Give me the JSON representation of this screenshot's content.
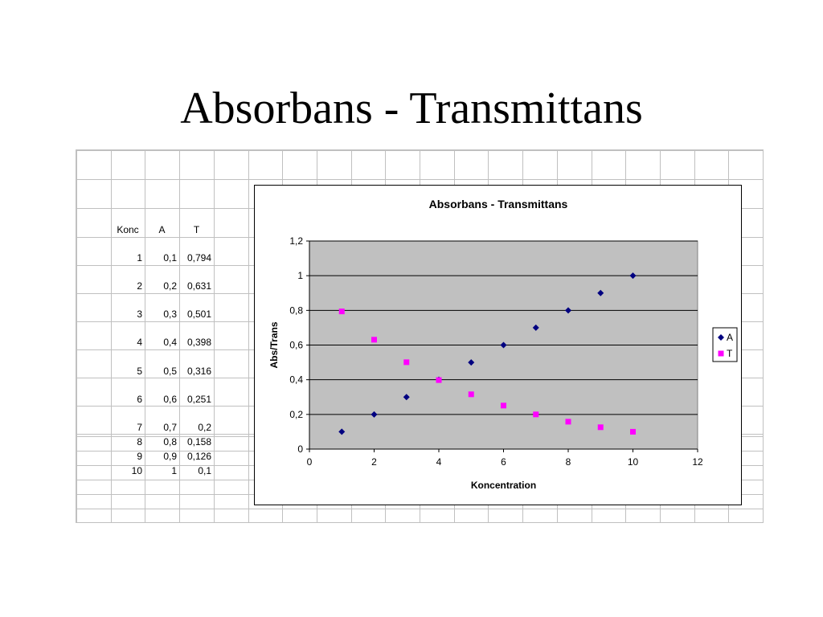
{
  "slide": {
    "title": "Absorbans - Transmittans"
  },
  "table": {
    "headers": [
      "Konc",
      "A",
      "T"
    ],
    "rows": [
      [
        "1",
        "0,1",
        "0,794"
      ],
      [
        "2",
        "0,2",
        "0,631"
      ],
      [
        "3",
        "0,3",
        "0,501"
      ],
      [
        "4",
        "0,4",
        "0,398"
      ],
      [
        "5",
        "0,5",
        "0,316"
      ],
      [
        "6",
        "0,6",
        "0,251"
      ],
      [
        "7",
        "0,7",
        "0,2"
      ],
      [
        "8",
        "0,8",
        "0,158"
      ],
      [
        "9",
        "0,9",
        "0,126"
      ],
      [
        "10",
        "1",
        "0,1"
      ]
    ]
  },
  "chart_data": {
    "type": "scatter",
    "title": "Absorbans - Transmittans",
    "xlabel": "Koncentration",
    "ylabel": "Abs/Trans",
    "xlim": [
      0,
      12
    ],
    "ylim": [
      0,
      1.2
    ],
    "x_ticks": [
      "0",
      "2",
      "4",
      "6",
      "8",
      "10",
      "12"
    ],
    "y_ticks": [
      "0",
      "0,2",
      "0,4",
      "0,6",
      "0,8",
      "1",
      "1,2"
    ],
    "grid": "horizontal",
    "legend_position": "right",
    "plot_background": "#c0c0c0",
    "series": [
      {
        "name": "A",
        "marker": "diamond",
        "color": "#000080",
        "x": [
          1,
          2,
          3,
          4,
          5,
          6,
          7,
          8,
          9,
          10
        ],
        "y": [
          0.1,
          0.2,
          0.3,
          0.4,
          0.5,
          0.6,
          0.7,
          0.8,
          0.9,
          1.0
        ]
      },
      {
        "name": "T",
        "marker": "square",
        "color": "#ff00ff",
        "x": [
          1,
          2,
          3,
          4,
          5,
          6,
          7,
          8,
          9,
          10
        ],
        "y": [
          0.794,
          0.631,
          0.501,
          0.398,
          0.316,
          0.251,
          0.2,
          0.158,
          0.126,
          0.1
        ]
      }
    ]
  }
}
